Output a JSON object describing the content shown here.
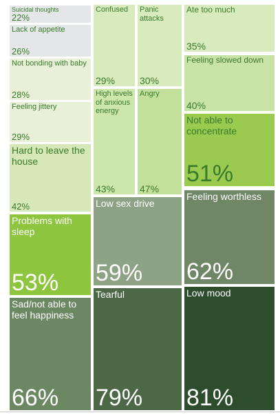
{
  "chart_data": {
    "type": "treemap",
    "unit": "%",
    "items": [
      {
        "label": "Suicidal thoughts",
        "value": 22,
        "color": "#e4e6e8"
      },
      {
        "label": "Lack of appetite",
        "value": 26,
        "color": "#e4e6e8"
      },
      {
        "label": "Not bonding with baby",
        "value": 28,
        "color": "#e8f0d8"
      },
      {
        "label": "Feeling jittery",
        "value": 29,
        "color": "#e8f0d8"
      },
      {
        "label": "Hard to leave the house",
        "value": 42,
        "color": "#d6e8b8"
      },
      {
        "label": "Problems with sleep",
        "value": 53,
        "color": "#8dc53e"
      },
      {
        "label": "Sad/not able to feel happiness",
        "value": 66,
        "color": "#6b8862"
      },
      {
        "label": "Confused",
        "value": 29,
        "color": "#d8ebbc"
      },
      {
        "label": "Panic attacks",
        "value": 30,
        "color": "#d8ebbc"
      },
      {
        "label": "High levels of anxious energy",
        "value": 43,
        "color": "#cde6ac"
      },
      {
        "label": "Angry",
        "value": 47,
        "color": "#c2e09c"
      },
      {
        "label": "Low sex drive",
        "value": 59,
        "color": "#8ea285"
      },
      {
        "label": "Tearful",
        "value": 79,
        "color": "#4d6846"
      },
      {
        "label": "Ate too much",
        "value": 35,
        "color": "#d8ebbc"
      },
      {
        "label": "Feeling slowed down",
        "value": 40,
        "color": "#c8e4a4"
      },
      {
        "label": "Not able to concentrate",
        "value": 51,
        "color": "#9acb50"
      },
      {
        "label": "Feeling worthless",
        "value": 62,
        "color": "#6f8766"
      },
      {
        "label": "Low mood",
        "value": 81,
        "color": "#2e4d2c"
      }
    ]
  }
}
